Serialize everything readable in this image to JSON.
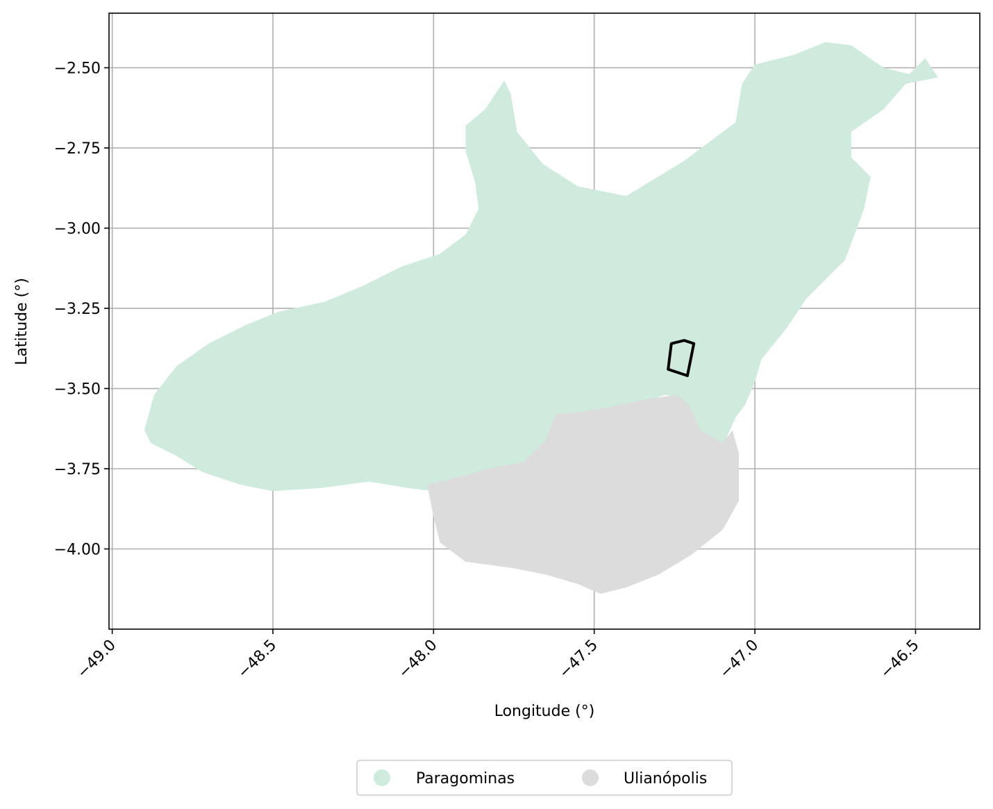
{
  "chart_data": {
    "type": "map",
    "xlabel": "Longitude (°)",
    "ylabel": "Latitude (°)",
    "xlim": [
      -49.01,
      -46.3
    ],
    "ylim": [
      -4.25,
      -2.33
    ],
    "grid": true,
    "x_ticks": [
      -49.0,
      -48.5,
      -48.0,
      -47.5,
      -47.0,
      -46.5
    ],
    "x_tick_labels": [
      "−49.0",
      "−48.5",
      "−48.0",
      "−47.5",
      "−47.0",
      "−46.5"
    ],
    "y_ticks": [
      -2.5,
      -2.75,
      -3.0,
      -3.25,
      -3.5,
      -3.75,
      -4.0
    ],
    "y_tick_labels": [
      "−2.50",
      "−2.75",
      "−3.00",
      "−3.25",
      "−3.50",
      "−3.75",
      "−4.00"
    ],
    "legend_position": "bottom-center",
    "regions": [
      {
        "name": "Paragominas",
        "color": "#cfebde",
        "outline": [
          [
            -48.9,
            -3.63
          ],
          [
            -48.87,
            -3.52
          ],
          [
            -48.8,
            -3.43
          ],
          [
            -48.7,
            -3.36
          ],
          [
            -48.58,
            -3.3
          ],
          [
            -48.48,
            -3.26
          ],
          [
            -48.34,
            -3.23
          ],
          [
            -48.22,
            -3.18
          ],
          [
            -48.1,
            -3.12
          ],
          [
            -47.98,
            -3.08
          ],
          [
            -47.9,
            -3.02
          ],
          [
            -47.86,
            -2.94
          ],
          [
            -47.87,
            -2.86
          ],
          [
            -47.9,
            -2.76
          ],
          [
            -47.9,
            -2.68
          ],
          [
            -47.84,
            -2.63
          ],
          [
            -47.78,
            -2.54
          ],
          [
            -47.76,
            -2.58
          ],
          [
            -47.74,
            -2.7
          ],
          [
            -47.66,
            -2.8
          ],
          [
            -47.55,
            -2.87
          ],
          [
            -47.4,
            -2.9
          ],
          [
            -47.22,
            -2.79
          ],
          [
            -47.06,
            -2.67
          ],
          [
            -47.04,
            -2.55
          ],
          [
            -47.0,
            -2.49
          ],
          [
            -46.88,
            -2.46
          ],
          [
            -46.78,
            -2.42
          ],
          [
            -46.7,
            -2.43
          ],
          [
            -46.6,
            -2.5
          ],
          [
            -46.52,
            -2.52
          ],
          [
            -46.47,
            -2.47
          ],
          [
            -46.43,
            -2.53
          ],
          [
            -46.53,
            -2.55
          ],
          [
            -46.6,
            -2.63
          ],
          [
            -46.7,
            -2.7
          ],
          [
            -46.7,
            -2.78
          ],
          [
            -46.64,
            -2.84
          ],
          [
            -46.66,
            -2.94
          ],
          [
            -46.72,
            -3.1
          ],
          [
            -46.84,
            -3.22
          ],
          [
            -46.9,
            -3.31
          ],
          [
            -46.98,
            -3.41
          ],
          [
            -47.0,
            -3.48
          ],
          [
            -47.03,
            -3.55
          ],
          [
            -47.06,
            -3.59
          ],
          [
            -47.1,
            -3.68
          ],
          [
            -47.16,
            -3.67
          ],
          [
            -47.2,
            -3.6
          ],
          [
            -47.23,
            -3.53
          ],
          [
            -47.28,
            -3.52
          ],
          [
            -47.4,
            -3.56
          ],
          [
            -47.55,
            -3.6
          ],
          [
            -47.62,
            -3.64
          ],
          [
            -47.66,
            -3.73
          ],
          [
            -47.76,
            -3.77
          ],
          [
            -47.9,
            -3.78
          ],
          [
            -48.0,
            -3.82
          ],
          [
            -48.08,
            -3.81
          ],
          [
            -48.2,
            -3.79
          ],
          [
            -48.35,
            -3.81
          ],
          [
            -48.5,
            -3.82
          ],
          [
            -48.6,
            -3.8
          ],
          [
            -48.72,
            -3.76
          ],
          [
            -48.8,
            -3.71
          ],
          [
            -48.88,
            -3.67
          ]
        ]
      },
      {
        "name": "Ulianópolis",
        "color": "#dcdcdc",
        "outline": [
          [
            -48.02,
            -3.8
          ],
          [
            -47.9,
            -3.77
          ],
          [
            -47.83,
            -3.75
          ],
          [
            -47.72,
            -3.73
          ],
          [
            -47.65,
            -3.66
          ],
          [
            -47.62,
            -3.58
          ],
          [
            -47.52,
            -3.57
          ],
          [
            -47.42,
            -3.55
          ],
          [
            -47.32,
            -3.53
          ],
          [
            -47.24,
            -3.52
          ],
          [
            -47.2,
            -3.56
          ],
          [
            -47.17,
            -3.63
          ],
          [
            -47.1,
            -3.67
          ],
          [
            -47.07,
            -3.63
          ],
          [
            -47.05,
            -3.7
          ],
          [
            -47.05,
            -3.85
          ],
          [
            -47.1,
            -3.94
          ],
          [
            -47.2,
            -4.02
          ],
          [
            -47.3,
            -4.08
          ],
          [
            -47.4,
            -4.12
          ],
          [
            -47.48,
            -4.14
          ],
          [
            -47.55,
            -4.11
          ],
          [
            -47.65,
            -4.08
          ],
          [
            -47.75,
            -4.06
          ],
          [
            -47.9,
            -4.04
          ],
          [
            -47.98,
            -3.98
          ],
          [
            -48.0,
            -3.9
          ]
        ]
      }
    ],
    "highlight_polygon": [
      [
        -47.27,
        -3.44
      ],
      [
        -47.26,
        -3.36
      ],
      [
        -47.22,
        -3.35
      ],
      [
        -47.19,
        -3.36
      ],
      [
        -47.21,
        -3.46
      ]
    ]
  }
}
